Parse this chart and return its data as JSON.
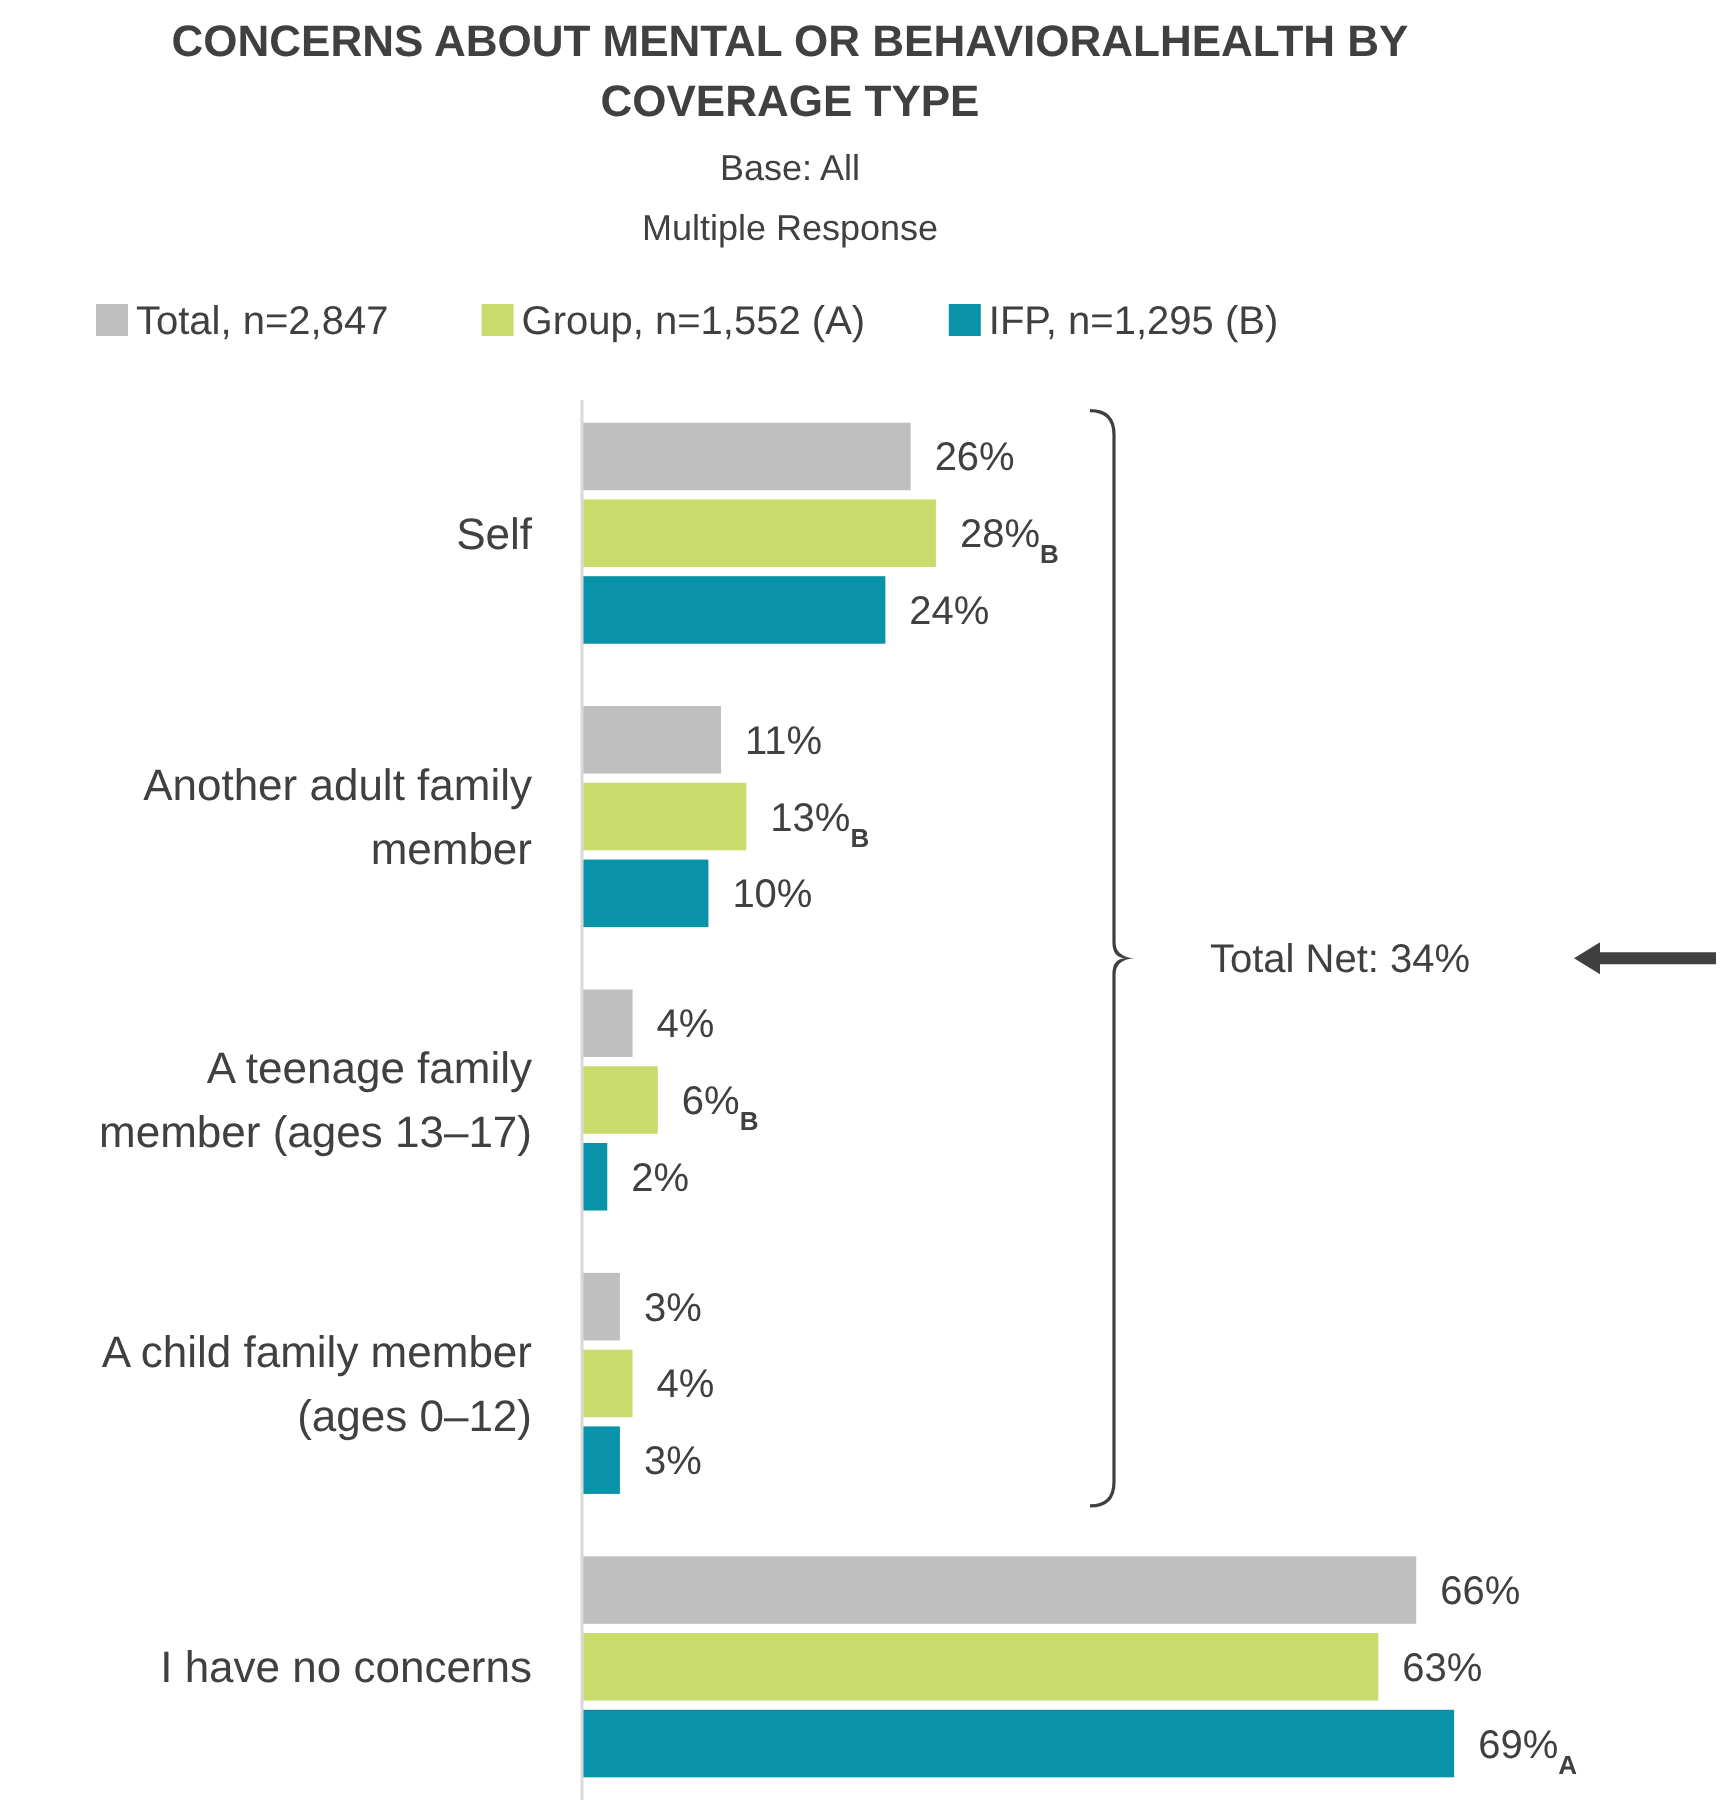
{
  "chart_data": {
    "type": "bar",
    "orientation": "horizontal",
    "title": "CONCERNS ABOUT MENTAL OR BEHAVIORALHEALTH BY COVERAGE TYPE",
    "subtitle": "Base: All\nMultiple Response",
    "categories": [
      "Self",
      "Another adult family member",
      "A teenage family member (ages 13–17)",
      "A child family member (ages 0–12)",
      "I have no concerns"
    ],
    "series": [
      {
        "name": "Total, n=2,847",
        "color": "#bfbfbf",
        "values": [
          26,
          11,
          4,
          3,
          66
        ],
        "value_labels": [
          "26%",
          "11%",
          "4%",
          "3%",
          "66%"
        ]
      },
      {
        "name": "Group, n=1,552 (A)",
        "color": "#c9dc6b",
        "values": [
          28,
          13,
          6,
          4,
          63
        ],
        "value_labels": [
          "28%$_{B}$",
          "13%$_{B}$",
          "6%$_{B}$",
          "4%",
          "63%"
        ]
      },
      {
        "name": "IFP, n=1,295 (B)",
        "color": "#0a93a8",
        "values": [
          24,
          10,
          2,
          3,
          69
        ],
        "value_labels": [
          "24%",
          "10%",
          "2%",
          "3%",
          "69%$_{A}$"
        ]
      }
    ],
    "annotations": [
      "Total Net: 34%"
    ],
    "legend": "top"
  }
}
